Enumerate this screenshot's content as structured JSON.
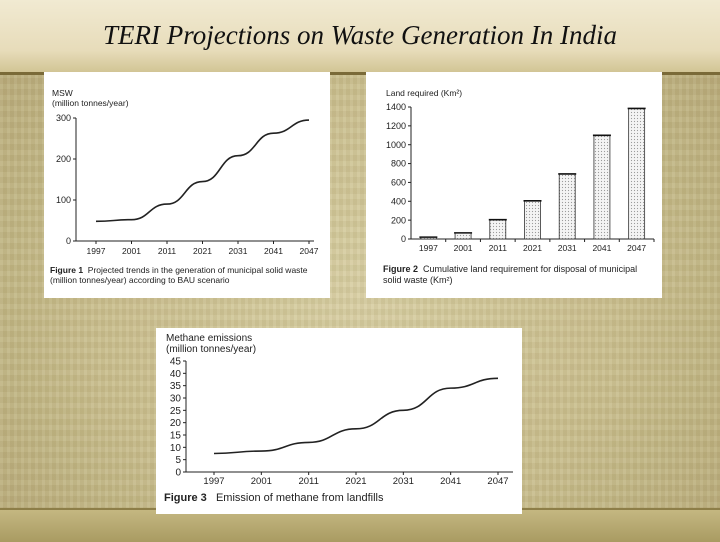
{
  "page": {
    "title": "TERI Projections on Waste Generation In India"
  },
  "chart_data": [
    {
      "type": "line",
      "ylabel_line1": "MSW",
      "ylabel_line2": "(million tonnes/year)",
      "categories": [
        "1997",
        "2001",
        "2011",
        "2021",
        "2031",
        "2041",
        "2047"
      ],
      "values": [
        48,
        52,
        90,
        145,
        208,
        263,
        295
      ],
      "yticks": [
        "0",
        "100",
        "200",
        "300"
      ],
      "ylim": [
        0,
        300
      ],
      "caption_label": "Figure 1",
      "caption_text": "Projected trends in the generation of municipal solid waste (million tonnes/year) according to BAU scenario",
      "grid": false
    },
    {
      "type": "bar",
      "ylabel": "Land required (Km²)",
      "categories": [
        "1997",
        "2001",
        "2011",
        "2021",
        "2031",
        "2041",
        "2047"
      ],
      "values": [
        20,
        65,
        205,
        405,
        690,
        1100,
        1385
      ],
      "yticks": [
        "0",
        "200",
        "400",
        "600",
        "800",
        "1000",
        "1200",
        "1400"
      ],
      "ylim": [
        0,
        1400
      ],
      "caption_label": "Figure 2",
      "caption_text": "Cumulative land requirement for disposal of municipal solid waste (Km²)",
      "grid": false
    },
    {
      "type": "line",
      "ylabel_line1": "Methane emissions",
      "ylabel_line2": "(million tonnes/year)",
      "categories": [
        "1997",
        "2001",
        "2011",
        "2021",
        "2031",
        "2041",
        "2047"
      ],
      "values": [
        7.5,
        8.5,
        12,
        17.5,
        25,
        34,
        38
      ],
      "yticks": [
        "0",
        "5",
        "10",
        "15",
        "20",
        "25",
        "30",
        "35",
        "40",
        "45"
      ],
      "ylim": [
        0,
        45
      ],
      "caption_label": "Figure 3",
      "caption_text": "Emission of methane from landfills",
      "grid": false
    }
  ]
}
